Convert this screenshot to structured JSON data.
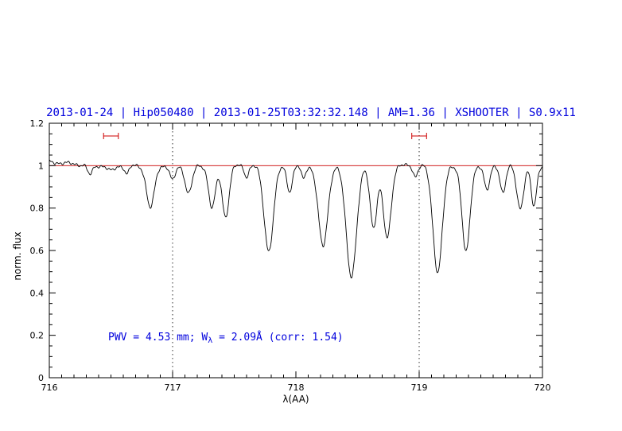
{
  "colors": {
    "accent_blue": "#0000dd",
    "line_red": "#cc0000",
    "spectrum_black": "#000000"
  },
  "annotation": {
    "pre": "PWV = 4.53 mm; W",
    "sub": "λ",
    "post": " = 2.09Å (corr: 1.54)"
  },
  "chart_data": {
    "type": "line",
    "title": "2013-01-24 | Hip050480 | 2013-01-25T03:32:32.148 | AM=1.36 | XSHOOTER | S0.9x11",
    "xlabel": "λ(AA)",
    "ylabel": "norm. flux",
    "xlim": [
      716,
      720
    ],
    "ylim": [
      0,
      1.2
    ],
    "grid": "off",
    "legend": "none",
    "x_ticks": [
      {
        "v": 716,
        "label": "716"
      },
      {
        "v": 717,
        "label": "717"
      },
      {
        "v": 718,
        "label": "718"
      },
      {
        "v": 719,
        "label": "719"
      },
      {
        "v": 720,
        "label": "720"
      }
    ],
    "y_ticks": [
      {
        "v": 0,
        "label": "0"
      },
      {
        "v": 0.2,
        "label": "0.2"
      },
      {
        "v": 0.4,
        "label": "0.4"
      },
      {
        "v": 0.6,
        "label": "0.6"
      },
      {
        "v": 0.8,
        "label": "0.8"
      },
      {
        "v": 1,
        "label": "1"
      },
      {
        "v": 1.2,
        "label": "1.2"
      }
    ],
    "x_minor_step": 0.1,
    "y_minor_step": 0.05,
    "continuum_line_y": 1.0,
    "vlines": [
      717,
      719
    ],
    "markers": [
      {
        "x": 716.5,
        "half_width": 0.06,
        "y": 1.14,
        "cap_half_height": 0.015
      },
      {
        "x": 719.0,
        "half_width": 0.06,
        "y": 1.14,
        "cap_half_height": 0.015
      }
    ],
    "spectrum": {
      "continuum": 1.0,
      "left_rise": {
        "until": 716.35,
        "amount": 0.018
      },
      "noise": [
        [
          0.005,
          37.0,
          0.0
        ],
        [
          0.004,
          89.0,
          1.3
        ],
        [
          0.0035,
          193.0,
          0.7
        ]
      ],
      "sample_step": 0.004,
      "absorption_lines": [
        [
          716.33,
          0.045,
          0.02
        ],
        [
          716.5,
          0.025,
          0.03
        ],
        [
          716.63,
          0.04,
          0.018
        ],
        [
          716.82,
          0.2,
          0.032
        ],
        [
          717.0,
          0.07,
          0.022
        ],
        [
          717.13,
          0.13,
          0.028
        ],
        [
          717.32,
          0.2,
          0.028
        ],
        [
          717.43,
          0.24,
          0.028
        ],
        [
          717.6,
          0.05,
          0.018
        ],
        [
          717.78,
          0.4,
          0.038
        ],
        [
          717.95,
          0.12,
          0.022
        ],
        [
          718.06,
          0.06,
          0.018
        ],
        [
          718.22,
          0.38,
          0.038
        ],
        [
          718.45,
          0.52,
          0.042
        ],
        [
          718.63,
          0.29,
          0.028
        ],
        [
          718.74,
          0.34,
          0.032
        ],
        [
          718.97,
          0.05,
          0.018
        ],
        [
          719.15,
          0.5,
          0.038
        ],
        [
          719.38,
          0.41,
          0.032
        ],
        [
          719.55,
          0.12,
          0.022
        ],
        [
          719.68,
          0.13,
          0.022
        ],
        [
          719.82,
          0.2,
          0.028
        ],
        [
          719.93,
          0.19,
          0.022
        ]
      ]
    }
  }
}
